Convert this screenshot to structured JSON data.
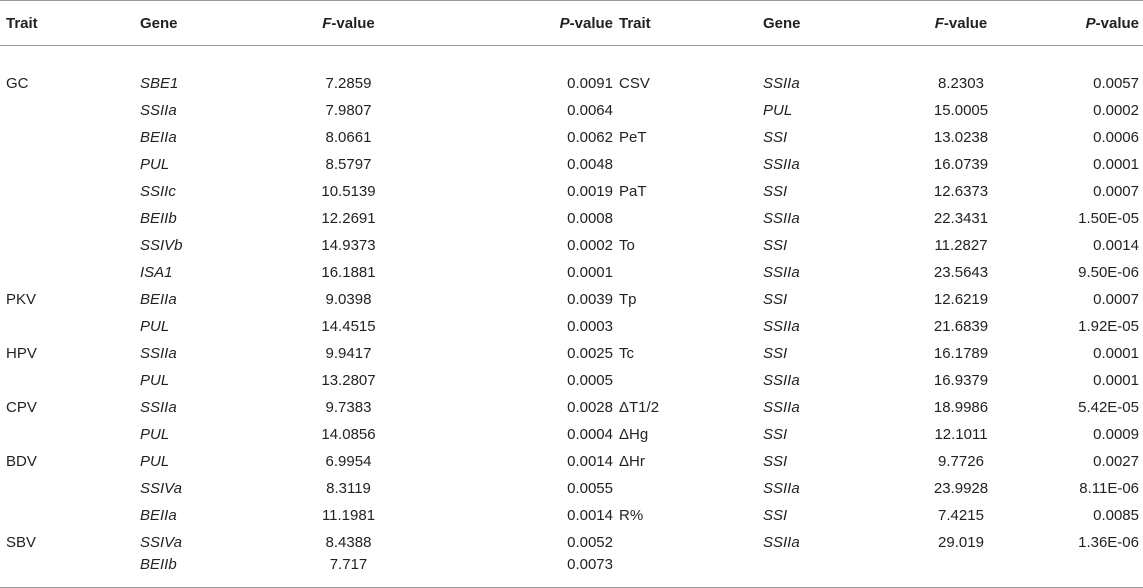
{
  "headers": {
    "trait": "Trait",
    "gene": "Gene",
    "f_prefix": "F",
    "f_suffix": "-value",
    "p_prefix": "P",
    "p_suffix": "-value"
  },
  "rows": [
    [
      "GC",
      "SBE1",
      "7.2859",
      "0.0091",
      "CSV",
      "SSIIa",
      "8.2303",
      "0.0057"
    ],
    [
      "",
      "SSIIa",
      "7.9807",
      "0.0064",
      "",
      "PUL",
      "15.0005",
      "0.0002"
    ],
    [
      "",
      "BEIIa",
      "8.0661",
      "0.0062",
      "PeT",
      "SSI",
      "13.0238",
      "0.0006"
    ],
    [
      "",
      "PUL",
      "8.5797",
      "0.0048",
      "",
      "SSIIa",
      "16.0739",
      "0.0001"
    ],
    [
      "",
      "SSIIc",
      "10.5139",
      "0.0019",
      "PaT",
      "SSI",
      "12.6373",
      "0.0007"
    ],
    [
      "",
      "BEIIb",
      "12.2691",
      "0.0008",
      "",
      "SSIIa",
      "22.3431",
      "1.50E-05"
    ],
    [
      "",
      "SSIVb",
      "14.9373",
      "0.0002",
      "To",
      "SSI",
      "11.2827",
      "0.0014"
    ],
    [
      "",
      "ISA1",
      "16.1881",
      "0.0001",
      "",
      "SSIIa",
      "23.5643",
      "9.50E-06"
    ],
    [
      "PKV",
      "BEIIa",
      "9.0398",
      "0.0039",
      "Tp",
      "SSI",
      "12.6219",
      "0.0007"
    ],
    [
      "",
      "PUL",
      "14.4515",
      "0.0003",
      "",
      "SSIIa",
      "21.6839",
      "1.92E-05"
    ],
    [
      "HPV",
      "SSIIa",
      "9.9417",
      "0.0025",
      "Tc",
      "SSI",
      "16.1789",
      "0.0001"
    ],
    [
      "",
      "PUL",
      "13.2807",
      "0.0005",
      "",
      "SSIIa",
      "16.9379",
      "0.0001"
    ],
    [
      "CPV",
      "SSIIa",
      "9.7383",
      "0.0028",
      "ΔT1/2",
      "SSIIa",
      "18.9986",
      "5.42E-05"
    ],
    [
      "",
      "PUL",
      "14.0856",
      "0.0004",
      "ΔHg",
      "SSI",
      "12.1011",
      "0.0009"
    ],
    [
      "BDV",
      "PUL",
      "6.9954",
      "0.0014",
      "ΔHr",
      "SSI",
      "9.7726",
      "0.0027"
    ],
    [
      "",
      "SSIVa",
      "8.3119",
      "0.0055",
      "",
      "SSIIa",
      "23.9928",
      "8.11E-06"
    ],
    [
      "",
      "BEIIa",
      "11.1981",
      "0.0014",
      "R%",
      "SSI",
      "7.4215",
      "0.0085"
    ],
    [
      "SBV",
      "SSIVa",
      "8.4388",
      "0.0052",
      "",
      "SSIIa",
      "29.019",
      "1.36E-06"
    ],
    [
      "",
      "BEIIb",
      "7.717",
      "0.0073",
      "",
      "",
      "",
      ""
    ]
  ]
}
